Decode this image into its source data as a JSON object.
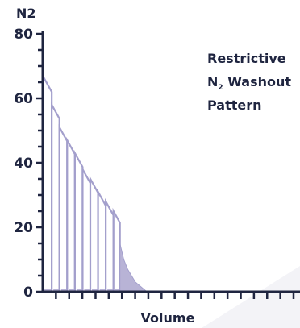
{
  "chart_data": {
    "type": "area",
    "ylabel": "N2",
    "xlabel": "Volume",
    "ylim": [
      0,
      80
    ],
    "y_ticks": [
      "0",
      "20",
      "40",
      "60",
      "80"
    ],
    "x_minor_tick_count": 19,
    "annotation": {
      "line1": "Restrictive",
      "line2_main": "N",
      "line2_sub": "2",
      "line2_rest": " Washout",
      "line3": "Pattern"
    },
    "series": [
      {
        "breaths": [
          {
            "start": 0.0,
            "peak": 67
          },
          {
            "start": 0.7,
            "peak": 58
          },
          {
            "start": 1.3,
            "peak": 51
          },
          {
            "start": 1.9,
            "peak": 47
          },
          {
            "start": 2.5,
            "peak": 43
          },
          {
            "start": 3.1,
            "peak": 38
          },
          {
            "start": 3.7,
            "peak": 35
          },
          {
            "start": 4.3,
            "peak": 31
          },
          {
            "start": 4.9,
            "peak": 28
          },
          {
            "start": 5.5,
            "peak": 25
          }
        ],
        "tail": [
          [
            6.0,
            15
          ],
          [
            6.3,
            10
          ],
          [
            6.6,
            7
          ],
          [
            6.9,
            5
          ],
          [
            7.2,
            3
          ],
          [
            7.5,
            2
          ],
          [
            7.8,
            1
          ],
          [
            8.1,
            0
          ]
        ],
        "x_max": 20
      }
    ],
    "colors": {
      "axis": "#1f2540",
      "fill": "#b8b3d6",
      "stroke": "#a39fcc",
      "shadow": "#f3f3f7"
    }
  }
}
